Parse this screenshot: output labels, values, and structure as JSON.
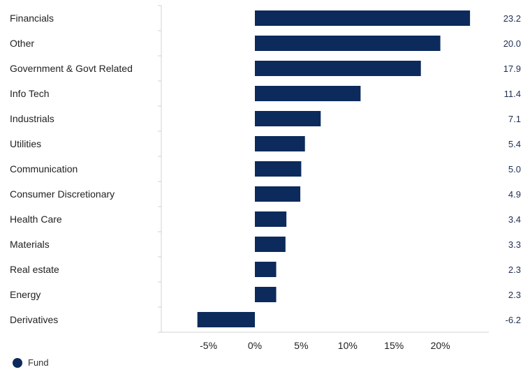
{
  "chart_data": {
    "type": "bar",
    "orientation": "horizontal",
    "categories": [
      "Financials",
      "Other",
      "Government & Govt Related",
      "Info Tech",
      "Industrials",
      "Utilities",
      "Communication",
      "Consumer Discretionary",
      "Health Care",
      "Materials",
      "Real estate",
      "Energy",
      "Derivatives"
    ],
    "series": [
      {
        "name": "Fund",
        "values": [
          23.2,
          20.0,
          17.9,
          11.4,
          7.1,
          5.4,
          5.0,
          4.9,
          3.4,
          3.3,
          2.3,
          2.3,
          -6.2
        ],
        "value_labels": [
          "23.2",
          "20.0",
          "17.9",
          "11.4",
          "7.1",
          "5.4",
          "5.0",
          "4.9",
          "3.4",
          "3.3",
          "2.3",
          "2.3",
          "-6.2"
        ]
      }
    ],
    "xticks": [
      -5,
      0,
      5,
      10,
      15,
      20
    ],
    "xtick_labels": [
      "-5%",
      "0%",
      "5%",
      "10%",
      "15%",
      "20%"
    ],
    "xlim": [
      -10,
      25
    ],
    "grid": false,
    "legend": "bottom-left",
    "colors": {
      "bar": "#0c2a5b",
      "value_label": "#1f2d50"
    }
  }
}
